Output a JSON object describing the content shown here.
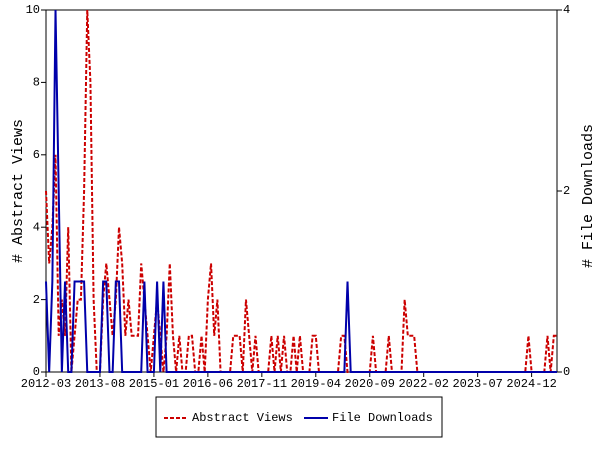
{
  "chart_data": {
    "type": "line",
    "x": [
      "2012-03",
      "2012-04",
      "2012-05",
      "2012-06",
      "2012-07",
      "2012-08",
      "2012-09",
      "2012-10",
      "2012-11",
      "2012-12",
      "2013-01",
      "2013-02",
      "2013-03",
      "2013-04",
      "2013-05",
      "2013-06",
      "2013-07",
      "2013-08",
      "2013-09",
      "2013-10",
      "2013-11",
      "2013-12",
      "2014-01",
      "2014-02",
      "2014-03",
      "2014-04",
      "2014-05",
      "2014-06",
      "2014-07",
      "2014-08",
      "2014-09",
      "2014-10",
      "2014-11",
      "2014-12",
      "2015-01",
      "2015-02",
      "2015-03",
      "2015-04",
      "2015-05",
      "2015-06",
      "2015-07",
      "2015-08",
      "2015-09",
      "2015-10",
      "2015-11",
      "2015-12",
      "2016-01",
      "2016-02",
      "2016-03",
      "2016-04",
      "2016-05",
      "2016-06",
      "2016-07",
      "2016-08",
      "2016-09",
      "2016-10",
      "2016-11",
      "2016-12",
      "2017-01",
      "2017-02",
      "2017-03",
      "2017-04",
      "2017-05",
      "2017-06",
      "2017-07",
      "2017-08",
      "2017-09",
      "2017-10",
      "2017-11",
      "2017-12",
      "2018-01",
      "2018-02",
      "2018-03",
      "2018-04",
      "2018-05",
      "2018-06",
      "2018-07",
      "2018-08",
      "2018-09",
      "2018-10",
      "2018-11",
      "2018-12",
      "2019-01",
      "2019-02",
      "2019-03",
      "2019-04",
      "2019-05",
      "2019-06",
      "2019-07",
      "2019-08",
      "2019-09",
      "2019-10",
      "2019-11",
      "2019-12",
      "2020-01",
      "2020-02",
      "2020-03",
      "2020-04",
      "2020-05",
      "2020-06",
      "2020-07",
      "2020-08",
      "2020-09",
      "2020-10",
      "2020-11",
      "2020-12",
      "2021-01",
      "2021-02",
      "2021-03",
      "2021-04",
      "2021-05",
      "2021-06",
      "2021-07",
      "2021-08",
      "2021-09",
      "2021-10",
      "2021-11",
      "2021-12",
      "2022-01",
      "2022-02",
      "2022-03",
      "2022-04",
      "2022-05",
      "2022-06",
      "2022-07",
      "2022-08",
      "2022-09",
      "2022-10",
      "2022-11",
      "2022-12",
      "2023-01",
      "2023-02",
      "2023-03",
      "2023-04",
      "2023-05",
      "2023-06",
      "2023-07",
      "2023-08",
      "2023-09",
      "2023-10",
      "2023-11",
      "2023-12",
      "2024-01",
      "2024-02",
      "2024-03",
      "2024-04",
      "2024-05",
      "2024-06",
      "2024-07",
      "2024-08",
      "2024-09",
      "2024-10",
      "2024-11",
      "2024-12",
      "2025-01",
      "2025-02",
      "2025-03",
      "2025-04",
      "2025-05",
      "2025-06",
      "2025-07",
      "2025-08"
    ],
    "series": [
      {
        "name": "Abstract Views",
        "color": "#cc0000",
        "dash": true,
        "values": [
          5,
          3,
          4,
          6,
          1,
          2,
          1,
          4,
          0,
          1,
          2,
          2,
          5,
          10,
          8,
          2,
          0,
          0,
          2,
          3,
          2,
          1,
          2,
          4,
          3,
          1,
          2,
          1,
          1,
          1,
          3,
          2,
          1,
          0,
          1,
          2,
          1,
          0,
          1,
          3,
          1,
          0,
          1,
          0,
          0,
          1,
          1,
          0,
          0,
          1,
          0,
          2,
          3,
          1,
          2,
          0,
          0,
          0,
          0,
          1,
          1,
          1,
          0,
          2,
          1,
          0,
          1,
          0,
          0,
          0,
          0,
          1,
          0,
          1,
          0,
          1,
          0,
          0,
          1,
          0,
          1,
          0,
          0,
          0,
          1,
          1,
          0,
          0,
          0,
          0,
          0,
          0,
          0,
          1,
          1,
          0,
          0,
          0,
          0,
          0,
          0,
          0,
          0,
          1,
          0,
          0,
          0,
          0,
          1,
          0,
          0,
          0,
          0,
          2,
          1,
          1,
          1,
          0,
          0,
          0,
          0,
          0,
          0,
          0,
          0,
          0,
          0,
          0,
          0,
          0,
          0,
          0,
          0,
          0,
          0,
          0,
          0,
          0,
          0,
          0,
          0,
          0,
          0,
          0,
          0,
          0,
          0,
          0,
          0,
          0,
          0,
          0,
          1,
          0,
          0,
          0,
          0,
          0,
          1,
          0,
          1,
          1
        ]
      },
      {
        "name": "File Downloads",
        "color": "#0000aa",
        "axis": "y2",
        "values": [
          1,
          0,
          1,
          4,
          2,
          0,
          1,
          0,
          0,
          1,
          1,
          1,
          1,
          0,
          0,
          0,
          0,
          0,
          1,
          1,
          0,
          0,
          1,
          1,
          0,
          0,
          0,
          0,
          0,
          0,
          0,
          1,
          0,
          0,
          0,
          1,
          0,
          1,
          0,
          0,
          0,
          0,
          0,
          0,
          0,
          0,
          0,
          0,
          0,
          0,
          0,
          0,
          0,
          0,
          0,
          0,
          0,
          0,
          0,
          0,
          0,
          0,
          0,
          0,
          0,
          0,
          0,
          0,
          0,
          0,
          0,
          0,
          0,
          0,
          0,
          0,
          0,
          0,
          0,
          0,
          0,
          0,
          0,
          0,
          0,
          0,
          0,
          0,
          0,
          0,
          0,
          0,
          0,
          0,
          0,
          1,
          0,
          0,
          0,
          0,
          0,
          0,
          0,
          0,
          0,
          0,
          0,
          0,
          0,
          0,
          0,
          0,
          0,
          0,
          0,
          0,
          0,
          0,
          0,
          0,
          0,
          0,
          0,
          0,
          0,
          0,
          0,
          0,
          0,
          0,
          0,
          0,
          0,
          0,
          0,
          0,
          0,
          0,
          0,
          0,
          0,
          0,
          0,
          0,
          0,
          0,
          0,
          0,
          0,
          0,
          0,
          0,
          0,
          0,
          0,
          0,
          0,
          0,
          0,
          0,
          0,
          0
        ]
      }
    ],
    "y_label": "# Abstract Views",
    "y2_label": "# File Downloads",
    "ylim": [
      0,
      10
    ],
    "yticks": [
      0,
      2,
      4,
      6,
      8,
      10
    ],
    "y2lim": [
      0,
      4
    ],
    "y2ticks": [
      0,
      2,
      4
    ],
    "xticks": [
      "2012-03",
      "2013-08",
      "2015-01",
      "2016-06",
      "2017-11",
      "2019-04",
      "2020-09",
      "2022-02",
      "2023-07",
      "2024-12"
    ]
  }
}
